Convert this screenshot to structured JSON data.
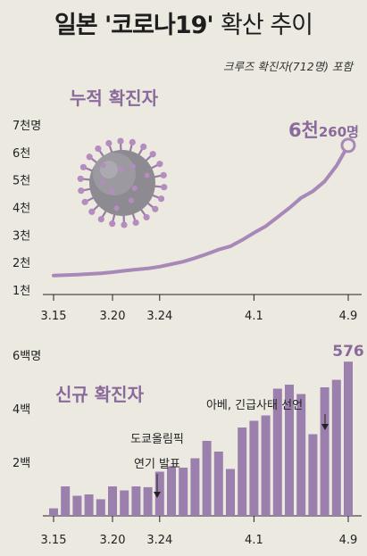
{
  "header": {
    "title_main": "일본 '코로나19'",
    "title_tail": "확산 추이",
    "subtitle": "크루즈 확진자(712명) 포함"
  },
  "colors": {
    "accent": "#8a6a9b",
    "bar": "#9b80ad",
    "line": "#a888b8",
    "background": "#ece9e1",
    "axis": "#222222"
  },
  "icons": {
    "virus": "coronavirus-icon"
  },
  "chart_data": [
    {
      "type": "line",
      "title": "누적 확진자",
      "x": [
        "3.15",
        "3.16",
        "3.17",
        "3.18",
        "3.19",
        "3.20",
        "3.21",
        "3.22",
        "3.23",
        "3.24",
        "3.25",
        "3.26",
        "3.27",
        "3.28",
        "3.29",
        "3.30",
        "3.31",
        "4.1",
        "4.2",
        "4.3",
        "4.4",
        "4.5",
        "4.6",
        "4.7",
        "4.8",
        "4.9"
      ],
      "values": [
        1530,
        1545,
        1560,
        1585,
        1610,
        1650,
        1700,
        1745,
        1785,
        1850,
        1940,
        2030,
        2160,
        2310,
        2470,
        2590,
        2820,
        3080,
        3320,
        3650,
        3980,
        4350,
        4590,
        4950,
        5510,
        6260
      ],
      "ylim": [
        1000,
        7000
      ],
      "y_ticks": [
        1000,
        2000,
        3000,
        4000,
        5000,
        6000,
        7000
      ],
      "y_tick_labels": [
        "1천",
        "2천",
        "3천",
        "4천",
        "5천",
        "6천",
        "7천명"
      ],
      "x_tick_labels": [
        "3.15",
        "3.20",
        "3.24",
        "4.1",
        "4.9"
      ],
      "final_label_big": "6천",
      "final_label_small": "260명",
      "grid": false
    },
    {
      "type": "bar",
      "title": "신규 확진자",
      "x": [
        "3.15",
        "3.16",
        "3.17",
        "3.18",
        "3.19",
        "3.20",
        "3.21",
        "3.22",
        "3.23",
        "3.24",
        "3.25",
        "3.26",
        "3.27",
        "3.28",
        "3.29",
        "3.30",
        "3.31",
        "4.1",
        "4.2",
        "4.3",
        "4.4",
        "4.5",
        "4.6",
        "4.7",
        "4.8",
        "4.9"
      ],
      "values": [
        28,
        110,
        75,
        80,
        62,
        110,
        95,
        110,
        107,
        165,
        185,
        180,
        215,
        280,
        240,
        175,
        330,
        355,
        375,
        475,
        490,
        455,
        305,
        480,
        508,
        576
      ],
      "ylim": [
        0,
        600
      ],
      "y_ticks": [
        200,
        400,
        600
      ],
      "y_tick_labels": [
        "2백",
        "4백",
        "6백명"
      ],
      "x_tick_labels": [
        "3.15",
        "3.20",
        "3.24",
        "4.1",
        "4.9"
      ],
      "final_label": "576",
      "annotations": [
        {
          "text_lines": [
            "도쿄올림픽",
            "연기 발표"
          ],
          "at": "3.24"
        },
        {
          "text_lines": [
            "아베, 긴급사태 선언"
          ],
          "at": "4.7"
        }
      ],
      "grid": false
    }
  ]
}
